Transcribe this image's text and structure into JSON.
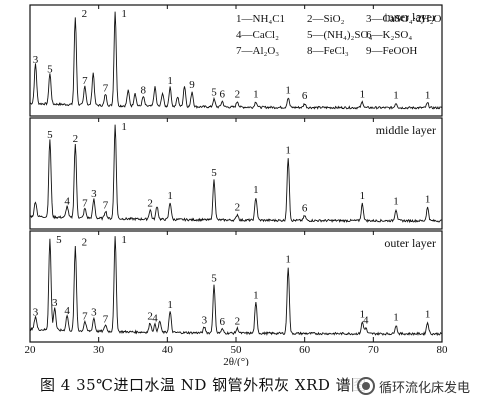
{
  "chart_data": {
    "type": "line",
    "xlabel": "2θ/(°)",
    "xlim": [
      20,
      80
    ],
    "x_ticks": [
      "20",
      "30",
      "40",
      "50",
      "60",
      "70",
      "80"
    ],
    "legend": {
      "placement": "top-right",
      "entries": [
        {
          "id": "1",
          "text": "1—NH₄C1"
        },
        {
          "id": "2",
          "text": "2—SiO₂"
        },
        {
          "id": "3",
          "text": "3—CaSO₄·2H₂O"
        },
        {
          "id": "4",
          "text": "4—CaCl₂"
        },
        {
          "id": "5",
          "text": "5—(NH₄)₂SO₄"
        },
        {
          "id": "6",
          "text": "6—K₂SO₄"
        },
        {
          "id": "7",
          "text": "7—Al₂O₃"
        },
        {
          "id": "8",
          "text": "8—FeCl₃"
        },
        {
          "id": "9",
          "text": "9—FeOOH"
        }
      ]
    },
    "series": [
      {
        "name": "inner layer",
        "peaks": [
          {
            "x": 20.8,
            "h": 0.42,
            "label": "3"
          },
          {
            "x": 22.9,
            "h": 0.32,
            "label": "5"
          },
          {
            "x": 26.6,
            "h": 0.92,
            "label": "2"
          },
          {
            "x": 28.0,
            "h": 0.2,
            "label": "7"
          },
          {
            "x": 29.2,
            "h": 0.34,
            "label": ""
          },
          {
            "x": 31.0,
            "h": 0.12,
            "label": "7"
          },
          {
            "x": 32.4,
            "h": 1.0,
            "label": "1"
          },
          {
            "x": 34.3,
            "h": 0.16,
            "label": ""
          },
          {
            "x": 35.3,
            "h": 0.14,
            "label": ""
          },
          {
            "x": 36.5,
            "h": 0.1,
            "label": "8"
          },
          {
            "x": 38.2,
            "h": 0.2,
            "label": ""
          },
          {
            "x": 39.3,
            "h": 0.14,
            "label": ""
          },
          {
            "x": 40.4,
            "h": 0.2,
            "label": "1"
          },
          {
            "x": 41.5,
            "h": 0.1,
            "label": ""
          },
          {
            "x": 42.5,
            "h": 0.22,
            "label": ""
          },
          {
            "x": 43.6,
            "h": 0.16,
            "label": "9"
          },
          {
            "x": 46.8,
            "h": 0.08,
            "label": "5"
          },
          {
            "x": 48.0,
            "h": 0.06,
            "label": "6"
          },
          {
            "x": 50.2,
            "h": 0.06,
            "label": "2"
          },
          {
            "x": 52.9,
            "h": 0.06,
            "label": "1"
          },
          {
            "x": 57.6,
            "h": 0.1,
            "label": "1"
          },
          {
            "x": 60.0,
            "h": 0.04,
            "label": "6"
          },
          {
            "x": 68.4,
            "h": 0.06,
            "label": "1"
          },
          {
            "x": 73.3,
            "h": 0.05,
            "label": "1"
          },
          {
            "x": 77.9,
            "h": 0.05,
            "label": "1"
          }
        ]
      },
      {
        "name": "middle layer",
        "peaks": [
          {
            "x": 20.8,
            "h": 0.16,
            "label": ""
          },
          {
            "x": 22.9,
            "h": 0.82,
            "label": "5"
          },
          {
            "x": 25.4,
            "h": 0.12,
            "label": "4"
          },
          {
            "x": 26.6,
            "h": 0.78,
            "label": "2"
          },
          {
            "x": 28.0,
            "h": 0.1,
            "label": "7"
          },
          {
            "x": 29.3,
            "h": 0.2,
            "label": "3"
          },
          {
            "x": 31.0,
            "h": 0.08,
            "label": "7"
          },
          {
            "x": 32.4,
            "h": 1.0,
            "label": "1"
          },
          {
            "x": 37.5,
            "h": 0.1,
            "label": "2"
          },
          {
            "x": 38.5,
            "h": 0.14,
            "label": ""
          },
          {
            "x": 40.4,
            "h": 0.18,
            "label": "1"
          },
          {
            "x": 46.8,
            "h": 0.42,
            "label": "5"
          },
          {
            "x": 50.2,
            "h": 0.06,
            "label": "2"
          },
          {
            "x": 52.9,
            "h": 0.24,
            "label": "1"
          },
          {
            "x": 57.6,
            "h": 0.66,
            "label": "1"
          },
          {
            "x": 60.0,
            "h": 0.05,
            "label": "6"
          },
          {
            "x": 68.4,
            "h": 0.18,
            "label": "1"
          },
          {
            "x": 73.3,
            "h": 0.12,
            "label": "1"
          },
          {
            "x": 77.9,
            "h": 0.14,
            "label": "1"
          }
        ]
      },
      {
        "name": "outer layer",
        "peaks": [
          {
            "x": 20.8,
            "h": 0.14,
            "label": "3"
          },
          {
            "x": 22.9,
            "h": 0.96,
            "label": "5"
          },
          {
            "x": 23.6,
            "h": 0.24,
            "label": "3"
          },
          {
            "x": 25.4,
            "h": 0.16,
            "label": "4"
          },
          {
            "x": 26.6,
            "h": 0.88,
            "label": "2"
          },
          {
            "x": 28.0,
            "h": 0.1,
            "label": "7"
          },
          {
            "x": 29.3,
            "h": 0.14,
            "label": "3"
          },
          {
            "x": 31.0,
            "h": 0.07,
            "label": "7"
          },
          {
            "x": 32.4,
            "h": 1.0,
            "label": "1"
          },
          {
            "x": 37.5,
            "h": 0.1,
            "label": "2"
          },
          {
            "x": 38.2,
            "h": 0.08,
            "label": "4"
          },
          {
            "x": 38.9,
            "h": 0.12,
            "label": ""
          },
          {
            "x": 40.4,
            "h": 0.22,
            "label": "1"
          },
          {
            "x": 45.4,
            "h": 0.06,
            "label": "3"
          },
          {
            "x": 46.8,
            "h": 0.5,
            "label": "5"
          },
          {
            "x": 48.0,
            "h": 0.04,
            "label": "6"
          },
          {
            "x": 50.2,
            "h": 0.05,
            "label": "2"
          },
          {
            "x": 52.9,
            "h": 0.32,
            "label": "1"
          },
          {
            "x": 57.6,
            "h": 0.7,
            "label": "1"
          },
          {
            "x": 68.4,
            "h": 0.12,
            "label": "1"
          },
          {
            "x": 68.9,
            "h": 0.06,
            "label": "4"
          },
          {
            "x": 73.3,
            "h": 0.09,
            "label": "1"
          },
          {
            "x": 77.9,
            "h": 0.12,
            "label": "1"
          }
        ]
      }
    ]
  },
  "caption": "图 4   35℃进口水温 ND 钢管外积灰 XRD 谱图",
  "watermark": {
    "icon": "circular-logo",
    "text": "循环流化床发电"
  }
}
